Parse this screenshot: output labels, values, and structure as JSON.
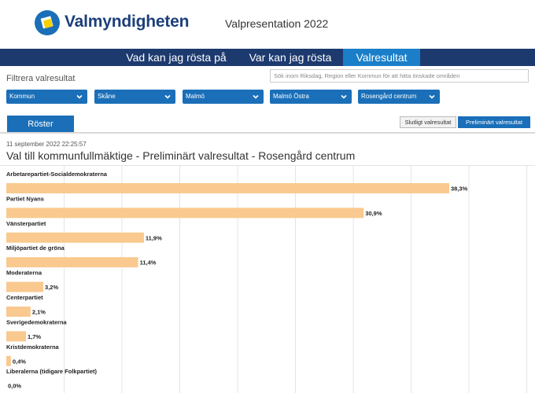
{
  "header": {
    "logo_text": "Valmyndigheten",
    "title": "Valpresentation 2022"
  },
  "nav": {
    "items": [
      {
        "label": "Vad kan jag rösta på",
        "active": false
      },
      {
        "label": "Var kan jag rösta",
        "active": false
      },
      {
        "label": "Valresultat",
        "active": true
      }
    ]
  },
  "filter": {
    "label": "Filtrera valresultat",
    "search_placeholder": "Sök inom Riksdag, Region eller Kommun för att hitta önskade områden",
    "selects": [
      {
        "value": "Kommun"
      },
      {
        "value": "Skåne"
      },
      {
        "value": "Malmö"
      },
      {
        "value": "Malmö Östra"
      },
      {
        "value": "Rosengård centrum"
      }
    ]
  },
  "tabs": {
    "roster_label": "Röster"
  },
  "result_buttons": {
    "final_label": "Slutligt valresultat",
    "prelim_label": "Preliminärt valresultat"
  },
  "content": {
    "timestamp": "11 september 2022 22:25:57",
    "title": "Val till kommunfullmäktige - Preliminärt valresultat - Rosengård centrum"
  },
  "colors": {
    "bar": "#f9c98f",
    "nav_bg": "#1d3a6f",
    "accent": "#1a6fb8"
  },
  "chart_data": {
    "type": "bar",
    "orientation": "horizontal",
    "categories": [
      "Arbetarepartiet-Socialdemokraterna",
      "Partiet Nyans",
      "Vänsterpartiet",
      "Miljöpartiet de gröna",
      "Moderaterna",
      "Centerpartiet",
      "Sverigedemokraterna",
      "Kristdemokraterna",
      "Liberalerna (tidigare Folkpartiet)"
    ],
    "values": [
      38.3,
      30.9,
      11.9,
      11.4,
      3.2,
      2.1,
      1.7,
      0.4,
      0.0
    ],
    "value_labels": [
      "38,3%",
      "30,9%",
      "11,9%",
      "11,4%",
      "3,2%",
      "2,1%",
      "1,7%",
      "0,4%",
      "0,0%"
    ],
    "xlim": [
      0,
      45
    ],
    "grid": true
  }
}
